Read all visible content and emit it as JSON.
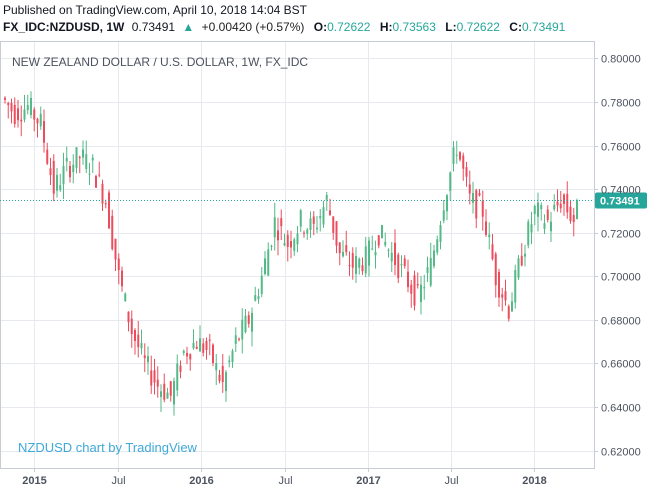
{
  "header": {
    "published": "Published on TradingView.com, April 10, 2018 14:04 BST",
    "symbol": "FX_IDC:NZDUSD, 1W",
    "last": "0.73491",
    "arrow": "▲",
    "change": "+0.00420 (+0.57%)",
    "o_label": "O:",
    "o_value": "0.72622",
    "h_label": "H:",
    "h_value": "0.73563",
    "l_label": "L:",
    "l_value": "0.72622",
    "c_label": "C:",
    "c_value": "0.73491"
  },
  "chart_title": "NEW ZEALAND DOLLAR / U.S. DOLLAR, 1W, FX_IDC",
  "watermark": "NZDUSD chart by TradingView",
  "colors": {
    "up": "#53b987",
    "down": "#eb4d5c",
    "last_line": "#26a69a",
    "last_badge": "#26a69a",
    "grid": "#e6e9ee",
    "axis_text": "#4c525e",
    "watermark": "#3fa9d9",
    "title": "#4c525e"
  },
  "chart_data": {
    "type": "candlestick",
    "title": "NEW ZEALAND DOLLAR / U.S. DOLLAR, 1W, FX_IDC",
    "ylim": [
      0.612,
      0.808
    ],
    "y_ticks": [
      "0.80000",
      "0.78000",
      "0.76000",
      "0.74000",
      "0.72000",
      "0.70000",
      "0.68000",
      "0.66000",
      "0.64000",
      "0.62000"
    ],
    "x_ticks": [
      "2015",
      "Jul",
      "2016",
      "Jul",
      "2017",
      "Jul",
      "2018"
    ],
    "last_price": 0.73491,
    "last_price_label": "0.73491",
    "anchors": [
      [
        0.782,
        0.796
      ],
      [
        0.775,
        0.785
      ],
      [
        0.778,
        0.775
      ],
      [
        0.77,
        0.76
      ],
      [
        0.74,
        0.725
      ],
      [
        0.75,
        0.755
      ],
      [
        0.755,
        0.765
      ],
      [
        0.75,
        0.74
      ],
      [
        0.735,
        0.705
      ],
      [
        0.7,
        0.69
      ],
      [
        0.675,
        0.655
      ],
      [
        0.66,
        0.655
      ],
      [
        0.65,
        0.64
      ],
      [
        0.645,
        0.67
      ],
      [
        0.665,
        0.655
      ],
      [
        0.67,
        0.68
      ],
      [
        0.665,
        0.645
      ],
      [
        0.65,
        0.672
      ],
      [
        0.67,
        0.68
      ],
      [
        0.68,
        0.668
      ],
      [
        0.7,
        0.71
      ],
      [
        0.725,
        0.73
      ],
      [
        0.715,
        0.708
      ],
      [
        0.725,
        0.733
      ],
      [
        0.722,
        0.726
      ],
      [
        0.735,
        0.728
      ],
      [
        0.71,
        0.717
      ],
      [
        0.705,
        0.69
      ],
      [
        0.708,
        0.718
      ],
      [
        0.72,
        0.735
      ],
      [
        0.71,
        0.695
      ],
      [
        0.7,
        0.705
      ],
      [
        0.69,
        0.685
      ],
      [
        0.705,
        0.72
      ],
      [
        0.735,
        0.745
      ],
      [
        0.76,
        0.745
      ],
      [
        0.735,
        0.725
      ],
      [
        0.73,
        0.718
      ],
      [
        0.7,
        0.688
      ],
      [
        0.685,
        0.69
      ],
      [
        0.71,
        0.72
      ],
      [
        0.73,
        0.732
      ],
      [
        0.725,
        0.728
      ],
      [
        0.735,
        0.725
      ],
      [
        0.726,
        0.735
      ]
    ]
  }
}
